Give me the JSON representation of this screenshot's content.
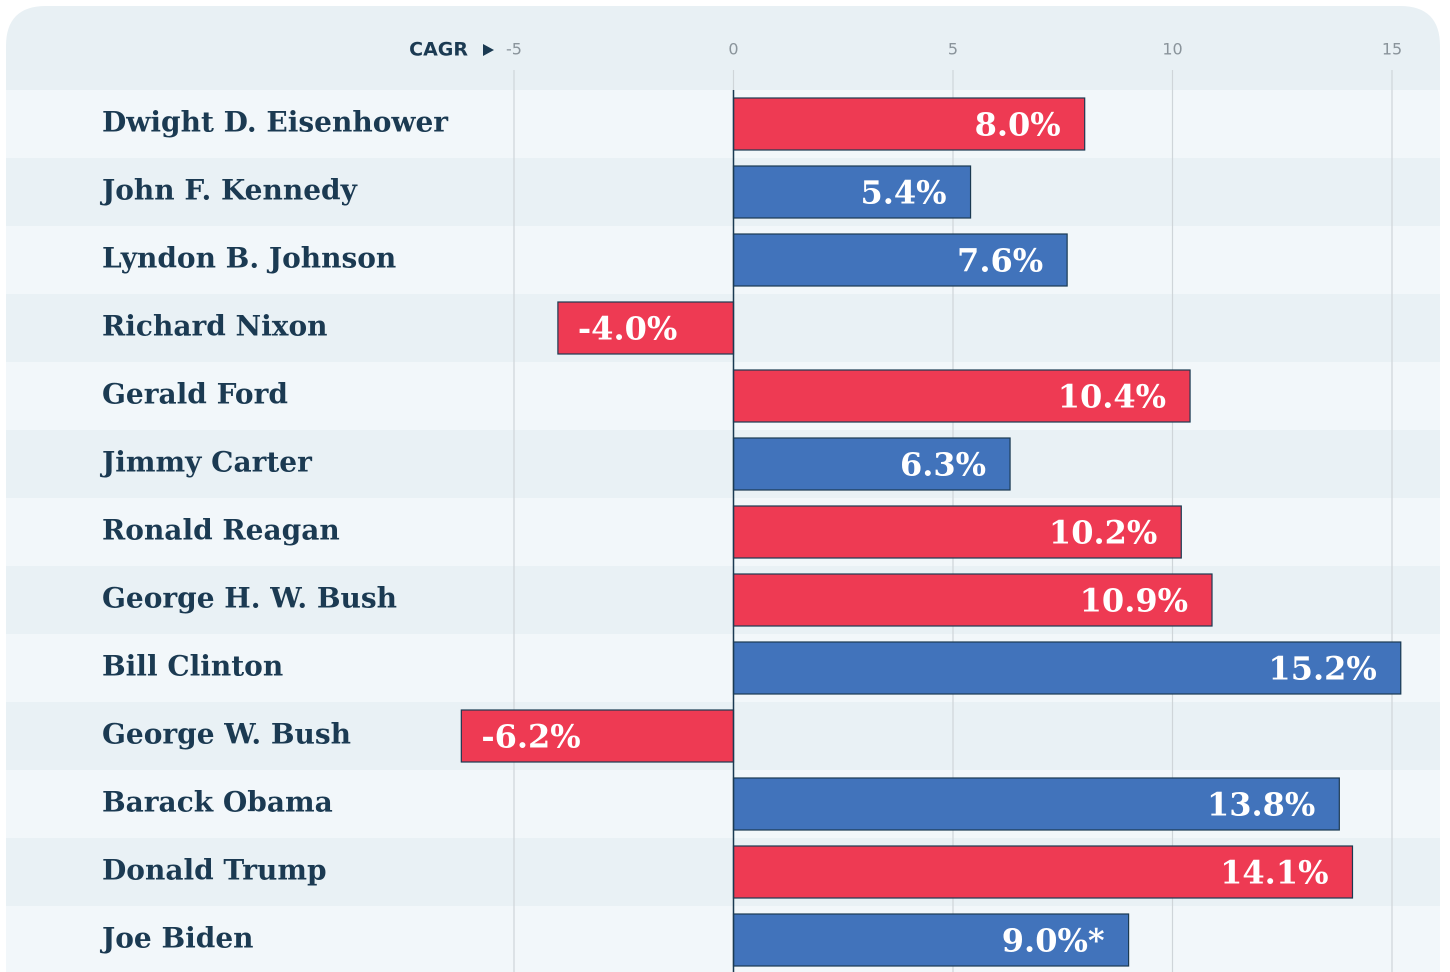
{
  "chart_data": {
    "type": "bar",
    "orientation": "horizontal",
    "x_label": "CAGR",
    "categories": [
      "Dwight D. Eisenhower",
      "John F. Kennedy",
      "Lyndon B. Johnson",
      "Richard Nixon",
      "Gerald Ford",
      "Jimmy Carter",
      "Ronald Reagan",
      "George H. W. Bush",
      "Bill Clinton",
      "George W. Bush",
      "Barack Obama",
      "Donald Trump",
      "Joe Biden"
    ],
    "values": [
      8.0,
      5.4,
      7.6,
      -4.0,
      10.4,
      6.3,
      10.2,
      10.9,
      15.2,
      -6.2,
      13.8,
      14.1,
      9.0
    ],
    "value_labels": [
      "8.0%",
      "5.4%",
      "7.6%",
      "-4.0%",
      "10.4%",
      "6.3%",
      "10.2%",
      "10.9%",
      "15.2%",
      "-6.2%",
      "13.8%",
      "14.1%",
      "9.0%*"
    ],
    "colors": [
      "#ee3a53",
      "#4173bb",
      "#4173bb",
      "#ee3a53",
      "#ee3a53",
      "#4173bb",
      "#ee3a53",
      "#ee3a53",
      "#4173bb",
      "#ee3a53",
      "#4173bb",
      "#ee3a53",
      "#4173bb"
    ],
    "xlim": [
      -5,
      15
    ],
    "xticks": [
      -5,
      0,
      5,
      10,
      15
    ],
    "grid": true
  }
}
